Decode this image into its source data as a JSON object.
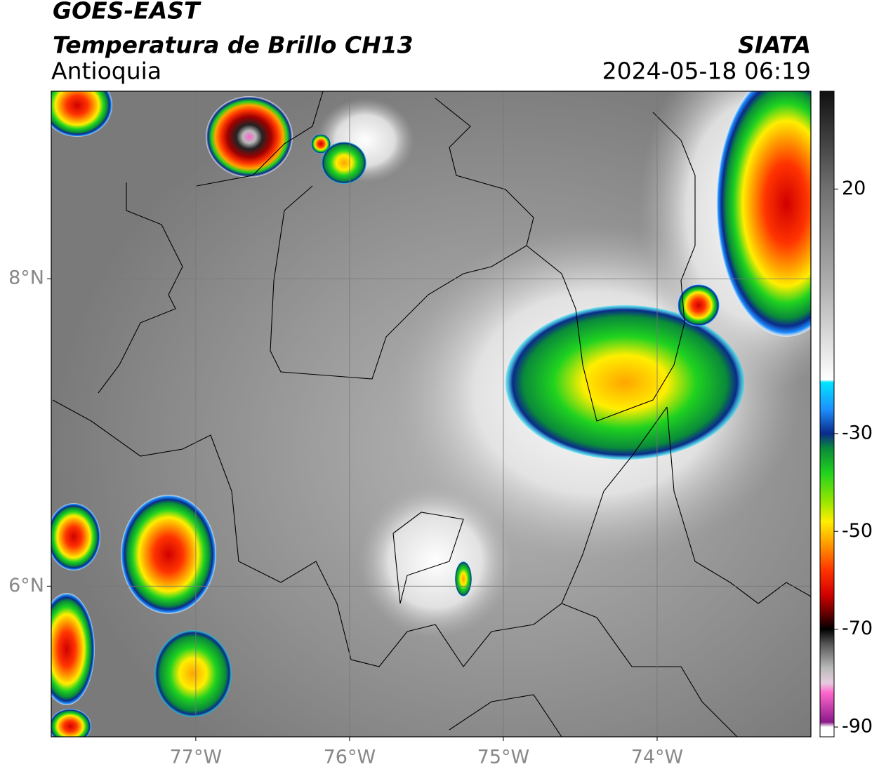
{
  "header": {
    "satellite": "GOES-EAST",
    "product": "Temperatura de Brillo CH13",
    "region": "Antioquia",
    "source": "SIATA",
    "datetime": "2024-05-18 06:19"
  },
  "map": {
    "xlim": [
      -77.94,
      -73.0
    ],
    "ylim": [
      5.02,
      9.22
    ],
    "grid": true,
    "xticks": [
      {
        "value": -77,
        "label": "77°W"
      },
      {
        "value": -76,
        "label": "76°W"
      },
      {
        "value": -75,
        "label": "75°W"
      },
      {
        "value": -74,
        "label": "74°W"
      }
    ],
    "yticks": [
      {
        "value": 8,
        "label": "8°N"
      },
      {
        "value": 6,
        "label": "6°N"
      }
    ]
  },
  "colorbar": {
    "lim": [
      -92,
      40
    ],
    "ticks": [
      20,
      -30,
      -50,
      -70,
      -90
    ],
    "colormap": [
      {
        "value": 40,
        "color": "#101010"
      },
      {
        "value": 30,
        "color": "#404040"
      },
      {
        "value": 20,
        "color": "#707070"
      },
      {
        "value": 0,
        "color": "#b0b0b0"
      },
      {
        "value": -19,
        "color": "#ffffff"
      },
      {
        "value": -19.5,
        "color": "#00e5ff"
      },
      {
        "value": -25,
        "color": "#1e90ff"
      },
      {
        "value": -30,
        "color": "#0a2a8a"
      },
      {
        "value": -33,
        "color": "#0a8a3a"
      },
      {
        "value": -38,
        "color": "#1fd21f"
      },
      {
        "value": -44,
        "color": "#9ae600"
      },
      {
        "value": -48,
        "color": "#ffee00"
      },
      {
        "value": -52,
        "color": "#ffa500"
      },
      {
        "value": -58,
        "color": "#ff3300"
      },
      {
        "value": -63,
        "color": "#d00000"
      },
      {
        "value": -67,
        "color": "#600000"
      },
      {
        "value": -70,
        "color": "#000000"
      },
      {
        "value": -73,
        "color": "#555555"
      },
      {
        "value": -78,
        "color": "#bbbbbb"
      },
      {
        "value": -81,
        "color": "#e6cce0"
      },
      {
        "value": -83,
        "color": "#ff66cc"
      },
      {
        "value": -89,
        "color": "#8a1a8a"
      },
      {
        "value": -90,
        "color": "#ffffff"
      },
      {
        "value": -92,
        "color": "#ffffff"
      }
    ]
  }
}
